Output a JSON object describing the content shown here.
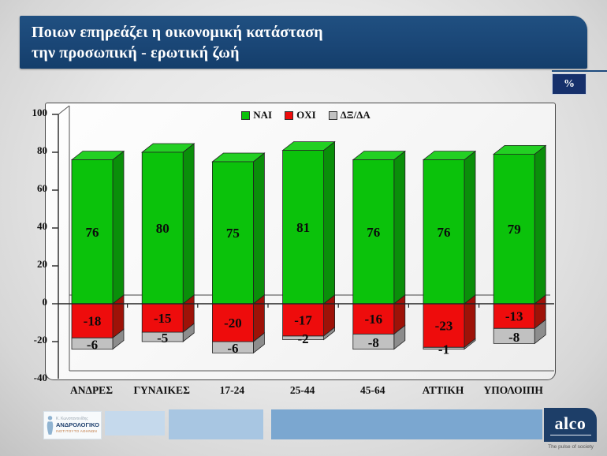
{
  "slide": {
    "title_line1": "Ποιων επηρεάζει η οικονομική κατάσταση",
    "title_line2": "την προσωπική - ερωτική ζωή",
    "percent_badge": "%"
  },
  "chart_data": {
    "type": "bar",
    "stacked": true,
    "grid": false,
    "legend_position": "top-center",
    "categories": [
      "ΑΝΔΡΕΣ",
      "ΓΥΝΑΙΚΕΣ",
      "17-24",
      "25-44",
      "45-64",
      "ΑΤΤΙΚΗ",
      "ΥΠΟΛΟΙΠΗ"
    ],
    "series": [
      {
        "name": "ΝΑΙ",
        "color": "#0bc20b",
        "color_top": "#23d023",
        "color_side": "#0a8f0a",
        "values": [
          76,
          80,
          75,
          81,
          76,
          76,
          79
        ]
      },
      {
        "name": "ΟΧΙ",
        "color": "#ee0c0c",
        "color_side": "#9e1208",
        "values": [
          -18,
          -15,
          -20,
          -17,
          -16,
          -23,
          -13
        ]
      },
      {
        "name": "ΔΞ/ΔΑ",
        "color": "#c1c1c1",
        "color_side": "#8d8d8d",
        "values": [
          -6,
          -5,
          -6,
          -2,
          -8,
          -1,
          -8
        ]
      }
    ],
    "ylim": [
      -40,
      100
    ],
    "ytick_step": 20,
    "ytick_labels": [
      "100",
      "80",
      "60",
      "40",
      "20",
      "0",
      "-20",
      "-40"
    ]
  },
  "footer": {
    "institute": {
      "credit": "Κ. Κωνσταντινίδης",
      "name": "ΑΝΔΡΟΛΟΓΙΚΟ",
      "subname": "ΙΝΣΤΙΤΟΥΤΟ ΑΘΗΝΩΝ"
    },
    "alco": {
      "wordmark": "alco",
      "tagline": "The pulse of society"
    }
  },
  "colors": {
    "banner": "#1a4676",
    "badge": "#16306b",
    "footer_segment_pale": "#c5d9ec",
    "footer_segment_light": "#a8c6e2",
    "footer_segment_medium": "#7ba7d0",
    "axis_stroke": "#333333",
    "label_text": "#111111"
  }
}
